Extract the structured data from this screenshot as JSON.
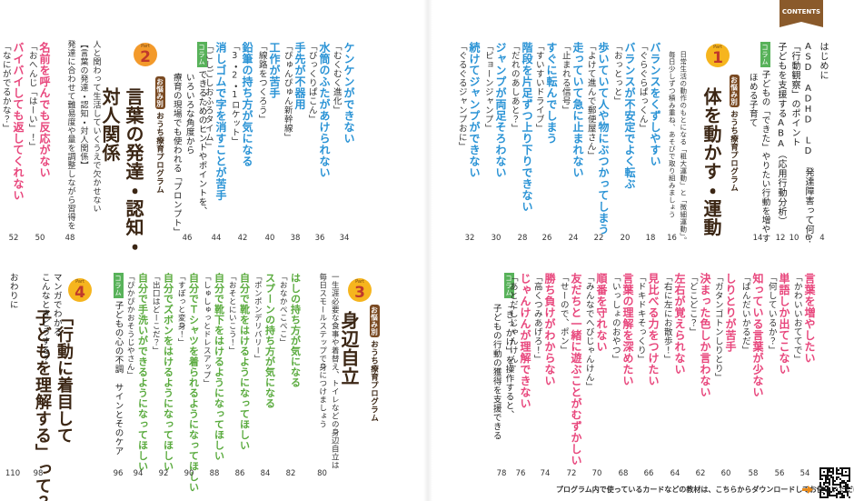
{
  "header": {
    "badge": "CONTENTS"
  },
  "front_matter": [
    {
      "title": "はじめに",
      "page": 4
    },
    {
      "title": "ASD ADHD LD 発達障害って何？",
      "page": 6
    },
    {
      "title": "「行動観察」のポイント",
      "page": 10
    },
    {
      "title": "子どもを支援するABA（応用行動分析）",
      "page": 12
    }
  ],
  "columns": [
    {
      "label": "コラム",
      "lines": [
        "子どもの「できた」やりたい行動を増やす",
        "ほめる子育て"
      ],
      "page": 14
    },
    {
      "label": "コラム",
      "lines": [
        "できるためのヒントやポイントを、",
        "いろいろな角度から",
        "療育の現場でも使われる「プロンプト」"
      ],
      "page": 46
    },
    {
      "label": "コラム",
      "lines": [
        "「きっかけ」を操作すると、",
        "子どもの行動の獲得を支援できる"
      ],
      "page": 78
    },
    {
      "label": "コラム",
      "lines": [
        "子どもの心の不調　サインとそのケア"
      ],
      "page": 96
    }
  ],
  "parts": [
    {
      "part": "Part",
      "number": 1,
      "tag": "お悩み別",
      "program": "おうち療育プログラム",
      "title": [
        "体を動かす・運動"
      ],
      "lead": [
        "日常生活の動作のもとになる「粗大運動」と「微細運動」。",
        "毎日少しずつ積み重ね、あそびで取り組みましょう"
      ],
      "lead_page": 16,
      "items": [
        {
          "title": "バランスをくずしやすい",
          "sub": "「ぐらぐらぱっくん」",
          "page": 18
        },
        {
          "title": "バランスが不安定でよく転ぶ",
          "sub": "「おっとっと」",
          "page": 20
        },
        {
          "title": "歩いていて人や物にぶつかってしまう",
          "sub": "「よけて進んで郵便屋さん」",
          "page": 22
        },
        {
          "title": "走っていて急に止まれない",
          "sub": "「止まれる信号」",
          "page": 24
        },
        {
          "title": "すぐに転んでしまう",
          "sub": "「すいすいドライブ」",
          "page": 26
        },
        {
          "title": "階段を片足ずつ上り下りできない",
          "sub": "「だれのあしあと？」",
          "page": 28
        },
        {
          "title": "ジャンプが両足そろわない",
          "sub": "「ピョーンジャンプ」",
          "page": 30
        },
        {
          "title": "続けてジャンプができない",
          "sub": "「ぐるぐるジャンプおに」",
          "page": 32
        },
        {
          "title": "ケンケンができない",
          "sub": "「むくむく進化」",
          "page": 34
        },
        {
          "title": "水筒のふたがあけられない",
          "sub": "「びっくりぱこん」",
          "page": 36
        },
        {
          "title": "手先が不器用",
          "sub": "「ぴゅんぴゅん新幹線」",
          "page": 38
        },
        {
          "title": "工作が苦手",
          "sub": "「線路をつくろう」",
          "page": 40
        },
        {
          "title": "鉛筆の持ち方が気になる",
          "sub": "「3・2・1ロケット」",
          "page": 42
        },
        {
          "title": "消しゴムで字を消すことが苦手",
          "sub": "「ごしごしおふろタイム」",
          "page": 44
        }
      ]
    },
    {
      "part": "Part",
      "number": 2,
      "tag": "お悩み別",
      "program": "おうち療育プログラム",
      "title": [
        "言葉の発達・認知・",
        "対人関係"
      ],
      "lead": [
        "人と関わって生活していくうえで欠かせない",
        "【言葉の発達・認知・対人関係】",
        "発達に合わせて難易度や量を調整しながら習得を"
      ],
      "lead_page": 48,
      "items": [
        {
          "title": "名前を呼んでも反応がない",
          "sub": "「おへんじ「はーい」！」",
          "page": 50
        },
        {
          "title": "バイバイしても返してくれない",
          "sub": "「なにがでるかな？」",
          "page": 52
        },
        {
          "title": "言葉を増やしたい",
          "sub": "「かわいいおててで」",
          "page": 54
        },
        {
          "title": "単語しか出てこない",
          "sub": "「何しているか？」",
          "page": 56
        },
        {
          "title": "知っている言葉が少ない",
          "sub": "「ぱんだいかるだ」",
          "page": 58
        },
        {
          "title": "しりとりが苦手",
          "sub": "「ガタンゴトンしりとり」",
          "page": 60
        },
        {
          "title": "決まった色しか言わない",
          "sub": "「どこどこ？」",
          "page": 62
        },
        {
          "title": "左右が覚えられない",
          "sub": "「右に左にお散歩！」",
          "page": 64
        },
        {
          "title": "見比べる力をつけたい",
          "sub": "「ドキドキそっくり」",
          "page": 66
        },
        {
          "title": "言葉の理解を深めたい",
          "sub": "「いっしょのおやつ」",
          "page": 68
        },
        {
          "title": "順番を守れない",
          "sub": "「みんなでへびじゃんけん」",
          "page": 70
        },
        {
          "title": "友だちと一緒に遊ぶことがむずかしい",
          "sub": "「せーので、ポン」",
          "page": 72
        },
        {
          "title": "勝ち負けがわからない",
          "sub": "「高くつみあげろ！」",
          "page": 74
        },
        {
          "title": "じゃんけんが理解できない",
          "sub": "「あとだしじゃんけん」",
          "page": 76
        }
      ]
    },
    {
      "part": "Part",
      "number": 3,
      "tag": "お悩み別",
      "program": "おうち療育プログラム",
      "title": [
        "身辺自立"
      ],
      "lead": [
        "一生涯必要な食事や着替え、トイレなどの身辺自立は",
        "毎日スモールステップで身につけましょう"
      ],
      "lead_page": 80,
      "items": [
        {
          "title": "はしの持ち方が気になる",
          "sub": "「おなかぺこぺこ」",
          "page": 82
        },
        {
          "title": "スプーンの持ち方が気になる",
          "sub": "「ポンポンデリバリー」",
          "page": 84
        },
        {
          "title": "自分で靴をはけるようになってほしい",
          "sub": "「おそとにいこう！」",
          "page": 86
        },
        {
          "title": "自分で靴下をはけるようになってほしい",
          "sub": "「しゅしゅっとドレスアップ」",
          "page": 88
        },
        {
          "title": "自分でＴシャツを着られるようになってほしい",
          "sub": "「すぽっと変身！」",
          "page": 90
        },
        {
          "title": "自分でズボンをはけるようになってほしい",
          "sub": "「出口はどーこだ？」",
          "page": 92
        },
        {
          "title": "自分で手洗いができるようになってほしい",
          "sub": "「ぴかぴかおそうじやさん」",
          "page": 94
        }
      ]
    },
    {
      "part": "Part",
      "number": 4,
      "title": [
        "「行動に着目して",
        "子どもを理解する」って？"
      ]
    }
  ],
  "back_matter": [
    {
      "title": [
        "マンガでわかる",
        "こんなときどうする？"
      ],
      "page": 98
    },
    {
      "title": [
        "おわりに"
      ],
      "page": 110
    }
  ],
  "footer": {
    "note": "プログラム内で使っているカードなどの教材は、こちらからダウンロードしてお使いいただけます。"
  }
}
